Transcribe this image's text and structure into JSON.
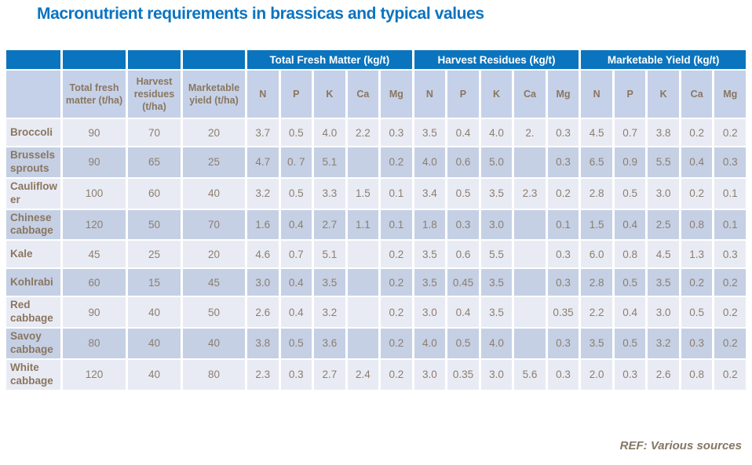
{
  "title": "Macronutrient requirements in brassicas and typical values",
  "reference": "REF: Various sources",
  "colors": {
    "title_blue": "#0B74C0",
    "header_blue": "#0B74BE",
    "header_text": "#FFFFFF",
    "subheader_bg": "#C5D1E8",
    "row_light_bg": "#E9EBF4",
    "row_dark_bg": "#C5D0E5",
    "text_brown": "#8A7660"
  },
  "table": {
    "group_headers": [
      "Total Fresh Matter (kg/t)",
      "Harvest Residues (kg/t)",
      "Marketable Yield (kg/t)"
    ],
    "sub_headers": [
      "",
      "Total fresh matter (t/ha)",
      "Harvest residues (t/ha)",
      "Marketable yield (t/ha)",
      "N",
      "P",
      "K",
      "Ca",
      "Mg",
      "N",
      "P",
      "K",
      "Ca",
      "Mg",
      "N",
      "P",
      "K",
      "Ca",
      "Mg"
    ],
    "rows": [
      {
        "label": "Broccoli",
        "values": [
          "90",
          "70",
          "20",
          "3.7",
          "0.5",
          "4.0",
          "2.2",
          "0.3",
          "3.5",
          "0.4",
          "4.0",
          "2.",
          "0.3",
          "4.5",
          "0.7",
          "3.8",
          "0.2",
          "0.2"
        ]
      },
      {
        "label": "Brussels sprouts",
        "values": [
          "90",
          "65",
          "25",
          "4.7",
          "0. 7",
          "5.1",
          "",
          "0.2",
          "4.0",
          "0.6",
          "5.0",
          "",
          "0.3",
          "6.5",
          "0.9",
          "5.5",
          "0.4",
          "0.3"
        ]
      },
      {
        "label": "Cauliflower",
        "values": [
          "100",
          "60",
          "40",
          "3.2",
          "0.5",
          "3.3",
          "1.5",
          "0.1",
          "3.4",
          "0.5",
          "3.5",
          "2.3",
          "0.2",
          "2.8",
          "0.5",
          "3.0",
          "0.2",
          "0.1"
        ]
      },
      {
        "label": "Chinese cabbage",
        "values": [
          "120",
          "50",
          "70",
          "1.6",
          "0.4",
          "2.7",
          "1.1",
          "0.1",
          "1.8",
          "0.3",
          "3.0",
          "",
          "0.1",
          "1.5",
          "0.4",
          "2.5",
          "0.8",
          "0.1"
        ]
      },
      {
        "label": "Kale",
        "values": [
          "45",
          "25",
          "20",
          "4.6",
          "0.7",
          "5.1",
          "",
          "0.2",
          "3.5",
          "0.6",
          "5.5",
          "",
          "0.3",
          "6.0",
          "0.8",
          "4.5",
          "1.3",
          "0.3"
        ]
      },
      {
        "label": "Kohlrabi",
        "values": [
          "60",
          "15",
          "45",
          "3.0",
          "0.4",
          "3.5",
          "",
          "0.2",
          "3.5",
          "0.45",
          "3.5",
          "",
          "0.3",
          "2.8",
          "0.5",
          "3.5",
          "0.2",
          "0.2"
        ]
      },
      {
        "label": "Red cabbage",
        "values": [
          "90",
          "40",
          "50",
          "2.6",
          "0.4",
          "3.2",
          "",
          "0.2",
          "3.0",
          "0.4",
          "3.5",
          "",
          "0.35",
          "2.2",
          "0.4",
          "3.0",
          "0.5",
          "0.2"
        ]
      },
      {
        "label": "Savoy cabbage",
        "values": [
          "80",
          "40",
          "40",
          "3.8",
          "0.5",
          "3.6",
          "",
          "0.2",
          "4.0",
          "0.5",
          "4.0",
          "",
          "0.3",
          "3.5",
          "0.5",
          "3.2",
          "0.3",
          "0.2"
        ]
      },
      {
        "label": "White cabbage",
        "values": [
          "120",
          "40",
          "80",
          "2.3",
          "0.3",
          "2.7",
          "2.4",
          "0.2",
          "3.0",
          "0.35",
          "3.0",
          "5.6",
          "0.3",
          "2.0",
          "0.3",
          "2.6",
          "0.8",
          "0.2"
        ]
      }
    ]
  }
}
